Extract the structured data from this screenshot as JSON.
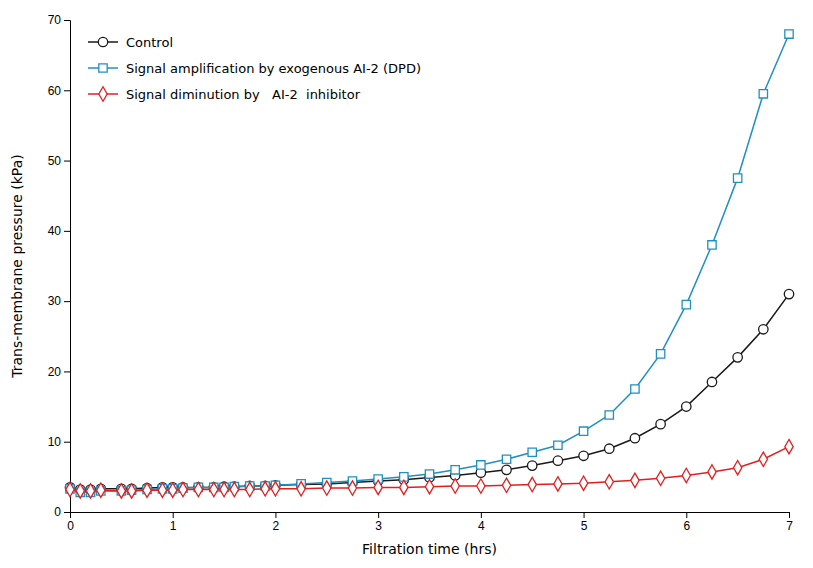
{
  "chart_data": {
    "type": "line",
    "xlabel": "Filtration time (hrs)",
    "ylabel": "Trans-membrane pressure (kPa)",
    "x": [
      0,
      0.1,
      0.2,
      0.3,
      0.5,
      0.6,
      0.75,
      0.9,
      1.0,
      1.1,
      1.25,
      1.4,
      1.5,
      1.6,
      1.75,
      1.9,
      2.0,
      2.25,
      2.5,
      2.75,
      3.0,
      3.25,
      3.5,
      3.75,
      4.0,
      4.25,
      4.5,
      4.75,
      5.0,
      5.25,
      5.5,
      5.75,
      6.0,
      6.25,
      6.5,
      6.75,
      7.0
    ],
    "series": [
      {
        "name": "Control",
        "color": "#1a1a1a",
        "marker": "circle",
        "values": [
          3.5,
          3.2,
          3.2,
          3.3,
          3.3,
          3.3,
          3.4,
          3.5,
          3.5,
          3.5,
          3.5,
          3.5,
          3.6,
          3.6,
          3.7,
          3.7,
          3.8,
          3.9,
          4.0,
          4.2,
          4.4,
          4.6,
          4.9,
          5.2,
          5.6,
          6.0,
          6.6,
          7.3,
          8.0,
          9.0,
          10.5,
          12.5,
          15.0,
          18.5,
          22.0,
          26.0,
          31.0
        ]
      },
      {
        "name": "Signal amplification by exogenous AI-2 (DPD)",
        "color": "#2090c0",
        "marker": "square",
        "values": [
          3.3,
          2.8,
          2.8,
          3.0,
          3.0,
          3.1,
          3.2,
          3.3,
          3.3,
          3.4,
          3.5,
          3.5,
          3.5,
          3.6,
          3.7,
          3.7,
          3.8,
          4.0,
          4.2,
          4.4,
          4.7,
          5.0,
          5.4,
          6.0,
          6.7,
          7.5,
          8.5,
          9.5,
          11.5,
          13.8,
          17.5,
          22.5,
          29.5,
          38.0,
          47.5,
          59.5,
          68.0
        ]
      },
      {
        "name": "Signal diminution by   AI-2  inhibitor",
        "color": "#e02020",
        "marker": "diamond",
        "values": [
          3.2,
          3.0,
          3.0,
          3.1,
          3.0,
          3.0,
          3.1,
          3.1,
          3.1,
          3.2,
          3.2,
          3.2,
          3.2,
          3.2,
          3.2,
          3.3,
          3.3,
          3.3,
          3.4,
          3.4,
          3.5,
          3.5,
          3.6,
          3.7,
          3.7,
          3.8,
          3.9,
          4.0,
          4.1,
          4.3,
          4.5,
          4.8,
          5.2,
          5.7,
          6.3,
          7.5,
          9.3
        ]
      }
    ],
    "xlim": [
      0,
      7
    ],
    "ylim": [
      0,
      70
    ],
    "xticks": [
      0,
      1,
      2,
      3,
      4,
      5,
      6,
      7
    ],
    "yticks": [
      0,
      10,
      20,
      30,
      40,
      50,
      60,
      70
    ],
    "grid": false,
    "legend": "upper left"
  }
}
